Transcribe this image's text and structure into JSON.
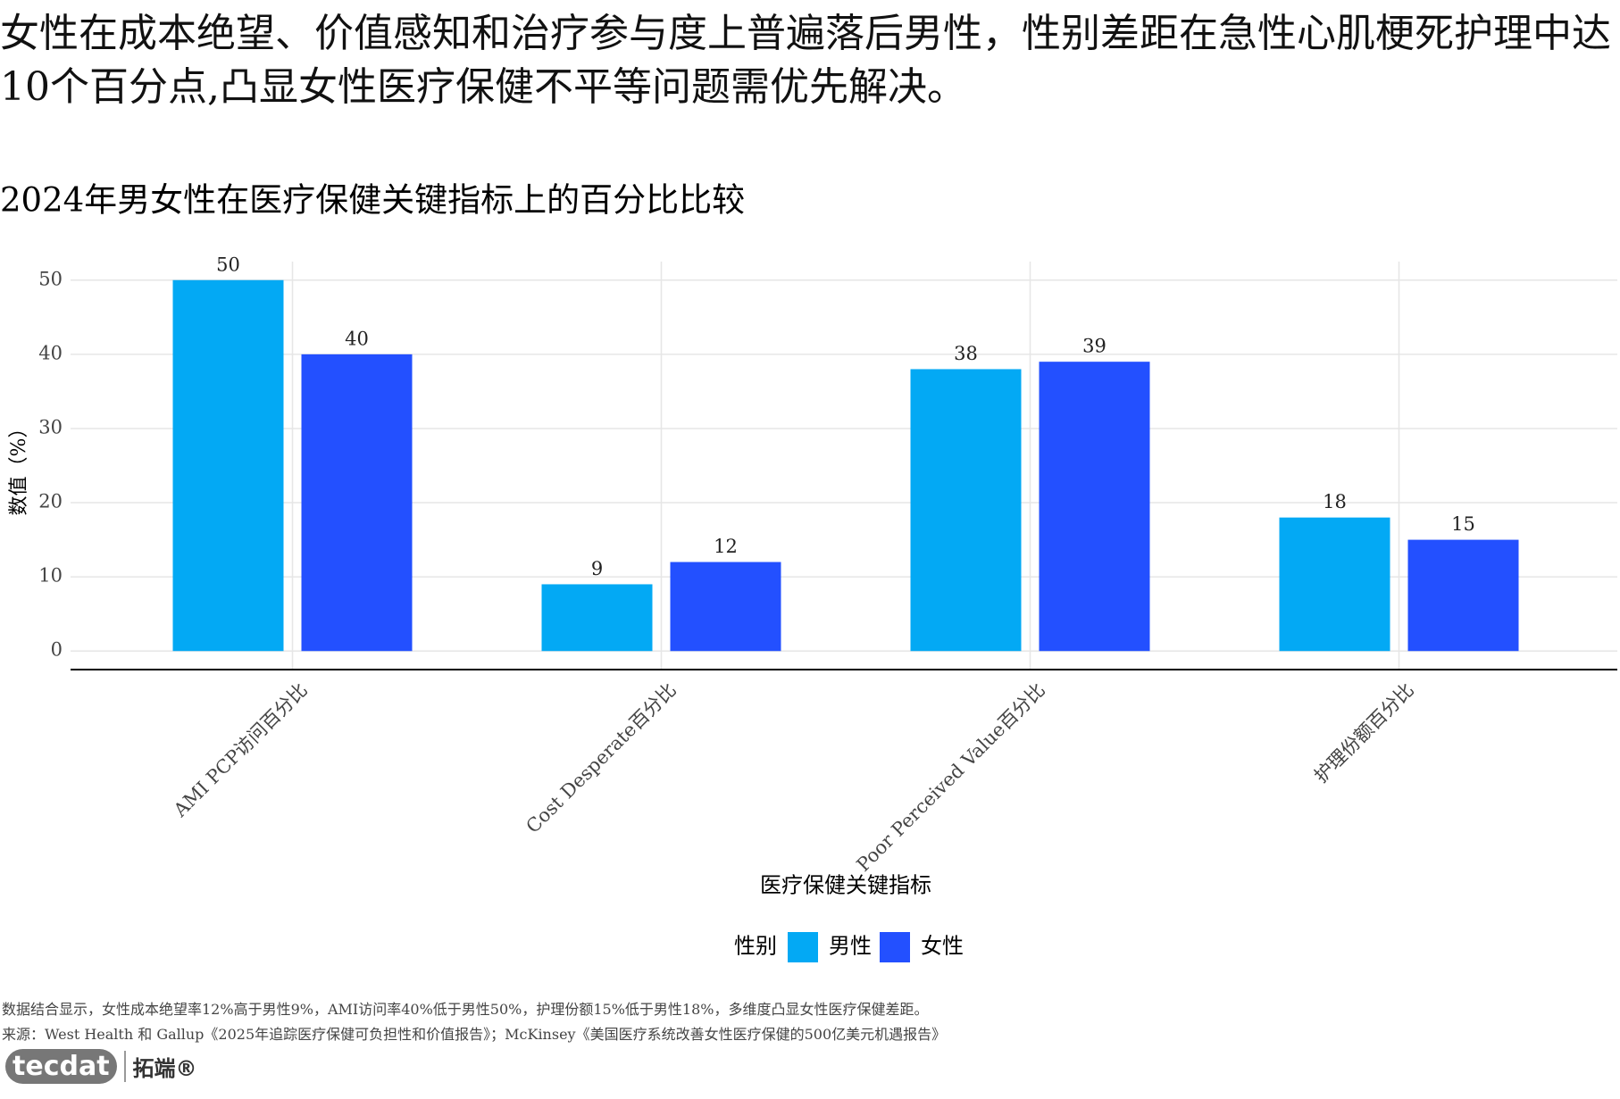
{
  "headline": "女性在成本绝望、价值感知和治疗参与度上普遍落后男性，性别差距在急性心肌梗死护理中达10个百分点,凸显女性医疗保健不平等问题需优先解决。",
  "chart_data": {
    "type": "bar",
    "title": "2024年男女性在医疗保健关键指标上的百分比比较",
    "x_label": "医疗保健关键指标",
    "y_label": "数值（%）",
    "categories": [
      "AMI PCP访问百分比",
      "Cost Desperate百分比",
      "Poor Perceived Value百分比",
      "护理份额百分比"
    ],
    "series": [
      {
        "name": "男性",
        "color": "#03a9f4",
        "values": [
          50,
          9,
          38,
          18
        ]
      },
      {
        "name": "女性",
        "color": "#2350ff",
        "values": [
          40,
          12,
          39,
          15
        ]
      }
    ],
    "legend_title": "性别",
    "legend_position": "bottom",
    "ylim": [
      -2.5,
      52.5
    ],
    "yticks": [
      0,
      10,
      20,
      30,
      40,
      50
    ],
    "grid": true
  },
  "footer": {
    "note": "数据结合显示，女性成本绝望率12%高于男性9%，AMI访问率40%低于男性50%，护理份额15%低于男性18%，多维度凸显女性医疗保健差距。",
    "source": "来源：West Health 和 Gallup《2025年追踪医疗保健可负担性和价值报告》；McKinsey《美国医疗系统改善女性医疗保健的500亿美元机遇报告》",
    "logo_en": "tecdat",
    "logo_cn": "拓端®"
  }
}
